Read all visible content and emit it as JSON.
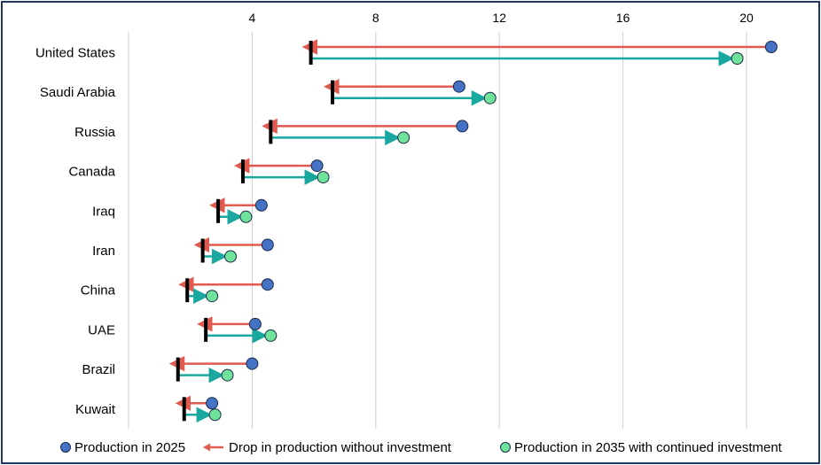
{
  "chart_data": {
    "type": "dumbbell",
    "xlim": [
      0,
      21
    ],
    "x_ticks": [
      4,
      8,
      12,
      16,
      20
    ],
    "categories": [
      "United States",
      "Saudi Arabia",
      "Russia",
      "Canada",
      "Iraq",
      "Iran",
      "China",
      "UAE",
      "Brazil",
      "Kuwait"
    ],
    "production_2025": [
      20.8,
      10.7,
      10.8,
      6.1,
      4.3,
      4.5,
      4.5,
      4.1,
      4.0,
      2.7
    ],
    "without_investment": [
      5.9,
      6.6,
      4.6,
      3.7,
      2.9,
      2.4,
      1.9,
      2.5,
      1.6,
      1.8
    ],
    "production_2035_continued": [
      19.7,
      11.7,
      8.9,
      6.3,
      3.8,
      3.3,
      2.7,
      4.6,
      3.2,
      2.8
    ],
    "colors": {
      "production_2025": "#4472c4",
      "drop": "#e05a50",
      "production_2035": "#6fe39a",
      "continued_arrow": "#1aa7a0",
      "grid": "#d0d0d0",
      "frame": "#1f3864"
    },
    "legend": [
      {
        "label": "Production in 2025",
        "marker": "blue-circle"
      },
      {
        "label": "Drop in production without investment",
        "marker": "red-arrow"
      },
      {
        "label": "Production in 2035 with continued investment",
        "marker": "green-circle"
      }
    ]
  }
}
